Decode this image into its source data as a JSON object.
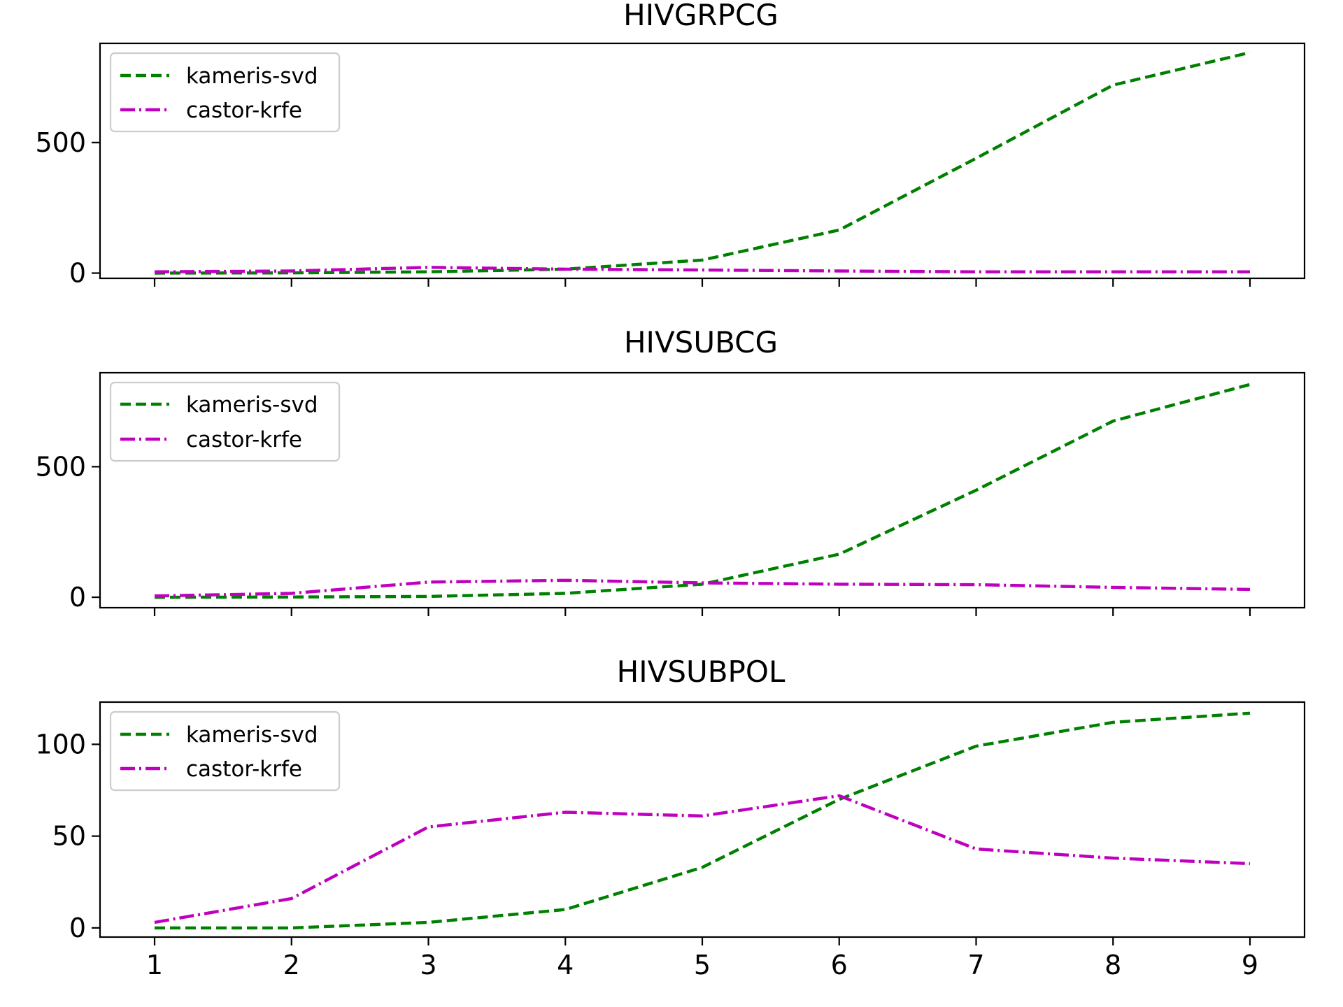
{
  "chart_data": [
    {
      "type": "line",
      "title": "HIVGRPCG",
      "x": [
        1,
        2,
        3,
        4,
        5,
        6,
        7,
        8,
        9
      ],
      "ylim": [
        -20,
        880
      ],
      "yticks": [
        0,
        500
      ],
      "show_xtick_labels": false,
      "legend": "top-left",
      "series": [
        {
          "name": "kameris-svd",
          "color": "#008000",
          "dash": "dashed",
          "values": [
            0,
            1,
            5,
            15,
            50,
            165,
            440,
            720,
            845
          ]
        },
        {
          "name": "castor-krfe",
          "color": "#bf00bf",
          "dash": "dashdot",
          "values": [
            5,
            8,
            22,
            15,
            12,
            8,
            5,
            5,
            5
          ]
        }
      ]
    },
    {
      "type": "line",
      "title": "HIVSUBCG",
      "x": [
        1,
        2,
        3,
        4,
        5,
        6,
        7,
        8,
        9
      ],
      "ylim": [
        -40,
        860
      ],
      "yticks": [
        0,
        500
      ],
      "show_xtick_labels": false,
      "legend": "top-left",
      "series": [
        {
          "name": "kameris-svd",
          "color": "#008000",
          "dash": "dashed",
          "values": [
            0,
            1,
            3,
            15,
            50,
            165,
            410,
            675,
            815
          ]
        },
        {
          "name": "castor-krfe",
          "color": "#bf00bf",
          "dash": "dashdot",
          "values": [
            5,
            15,
            58,
            65,
            55,
            50,
            48,
            38,
            30
          ]
        }
      ]
    },
    {
      "type": "line",
      "title": "HIVSUBPOL",
      "x": [
        1,
        2,
        3,
        4,
        5,
        6,
        7,
        8,
        9
      ],
      "ylim": [
        -5,
        123
      ],
      "yticks": [
        0,
        50,
        100
      ],
      "show_xtick_labels": true,
      "legend": "top-left",
      "series": [
        {
          "name": "kameris-svd",
          "color": "#008000",
          "dash": "dashed",
          "values": [
            0,
            0,
            3,
            10,
            33,
            70,
            99,
            112,
            117
          ]
        },
        {
          "name": "castor-krfe",
          "color": "#bf00bf",
          "dash": "dashdot",
          "values": [
            3,
            16,
            55,
            63,
            61,
            72,
            43,
            38,
            35
          ]
        }
      ]
    }
  ]
}
